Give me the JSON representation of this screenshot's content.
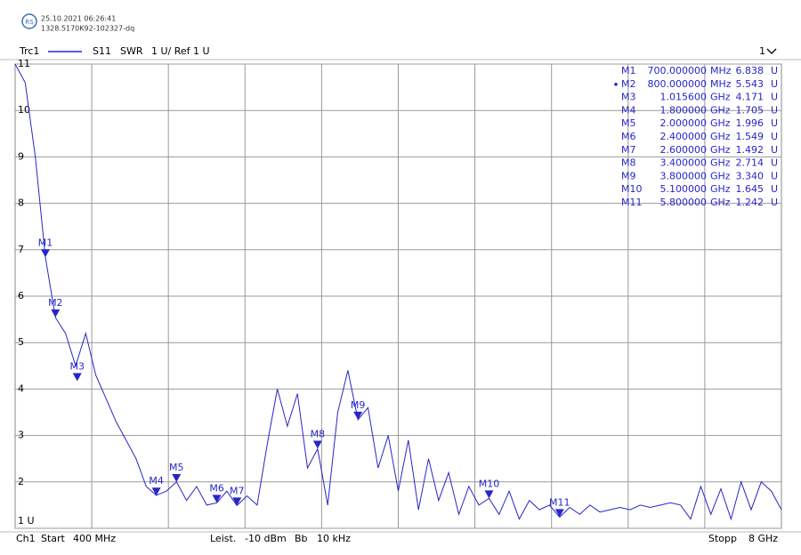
{
  "header": {
    "timestamp": "25.10.2021 06:26:41",
    "device_id": "1328.5170K92-102327-dq"
  },
  "trace_bar": {
    "trace": "Trc1",
    "parameter": "S11",
    "format": "SWR",
    "scale": "1 U/ Ref 1 U",
    "window": "1"
  },
  "footer": {
    "channel": "Ch1",
    "start": "Start",
    "start_value": "400 MHz",
    "power": "Leist.",
    "power_value": "-10 dBm",
    "bandwidth": "Bb",
    "bandwidth_value": "10 kHz",
    "stop": "Stopp",
    "stop_value": "8 GHz"
  },
  "chart_data": {
    "type": "line",
    "color": "#2626c8",
    "xlim": [
      400,
      8000
    ],
    "x_divisions": 10,
    "ylim": [
      1,
      11
    ],
    "yticks": [
      {
        "value": 1,
        "label": "1 U"
      },
      2,
      3,
      4,
      5,
      6,
      7,
      8,
      9,
      10,
      11
    ],
    "grid": true,
    "x": [
      400,
      500,
      600,
      700,
      800,
      900,
      1000,
      1100,
      1200,
      1300,
      1400,
      1500,
      1600,
      1700,
      1800,
      1900,
      2000,
      2100,
      2200,
      2300,
      2400,
      2500,
      2600,
      2700,
      2800,
      2900,
      3000,
      3100,
      3200,
      3300,
      3400,
      3500,
      3600,
      3700,
      3800,
      3900,
      4000,
      4100,
      4200,
      4300,
      4400,
      4500,
      4600,
      4700,
      4800,
      4900,
      5000,
      5100,
      5200,
      5300,
      5400,
      5500,
      5600,
      5700,
      5800,
      5900,
      6000,
      6100,
      6200,
      6300,
      6400,
      6500,
      6600,
      6700,
      6800,
      6900,
      7000,
      7100,
      7200,
      7300,
      7400,
      7500,
      7600,
      7700,
      7800,
      7900,
      8000
    ],
    "values": [
      11.0,
      10.6,
      9.0,
      6.84,
      5.54,
      5.2,
      4.5,
      5.2,
      4.3,
      3.8,
      3.3,
      2.9,
      2.5,
      1.9,
      1.71,
      1.8,
      2.0,
      1.6,
      1.9,
      1.5,
      1.55,
      1.8,
      1.49,
      1.7,
      1.5,
      2.8,
      4.0,
      3.2,
      3.9,
      2.3,
      2.71,
      1.5,
      3.5,
      4.4,
      3.34,
      3.6,
      2.3,
      3.0,
      1.8,
      2.9,
      1.4,
      2.5,
      1.6,
      2.2,
      1.3,
      1.9,
      1.5,
      1.645,
      1.3,
      1.8,
      1.2,
      1.6,
      1.4,
      1.5,
      1.242,
      1.45,
      1.3,
      1.5,
      1.35,
      1.4,
      1.45,
      1.4,
      1.5,
      1.45,
      1.5,
      1.55,
      1.5,
      1.2,
      1.9,
      1.3,
      1.85,
      1.2,
      2.0,
      1.4,
      2.0,
      1.8,
      1.4
    ],
    "markers": [
      {
        "name": "M1",
        "x": 700,
        "y": 6.838,
        "x_label": "700.000000",
        "x_unit": "MHz",
        "y_label": "6.838",
        "y_unit": "U"
      },
      {
        "name": "M2",
        "x": 800,
        "y": 5.543,
        "x_label": "800.000000",
        "x_unit": "MHz",
        "y_label": "5.543",
        "y_unit": "U",
        "active": true
      },
      {
        "name": "M3",
        "x": 1015.6,
        "y": 4.171,
        "x_label": "1.015600",
        "x_unit": "GHz",
        "y_label": "4.171",
        "y_unit": "U"
      },
      {
        "name": "M4",
        "x": 1800,
        "y": 1.705,
        "x_label": "1.800000",
        "x_unit": "GHz",
        "y_label": "1.705",
        "y_unit": "U"
      },
      {
        "name": "M5",
        "x": 2000,
        "y": 1.996,
        "x_label": "2.000000",
        "x_unit": "GHz",
        "y_label": "1.996",
        "y_unit": "U"
      },
      {
        "name": "M6",
        "x": 2400,
        "y": 1.549,
        "x_label": "2.400000",
        "x_unit": "GHz",
        "y_label": "1.549",
        "y_unit": "U"
      },
      {
        "name": "M7",
        "x": 2600,
        "y": 1.492,
        "x_label": "2.600000",
        "x_unit": "GHz",
        "y_label": "1.492",
        "y_unit": "U"
      },
      {
        "name": "M8",
        "x": 3400,
        "y": 2.714,
        "x_label": "3.400000",
        "x_unit": "GHz",
        "y_label": "2.714",
        "y_unit": "U"
      },
      {
        "name": "M9",
        "x": 3800,
        "y": 3.34,
        "x_label": "3.800000",
        "x_unit": "GHz",
        "y_label": "3.340",
        "y_unit": "U"
      },
      {
        "name": "M10",
        "x": 5100,
        "y": 1.645,
        "x_label": "5.100000",
        "x_unit": "GHz",
        "y_label": "1.645",
        "y_unit": "U"
      },
      {
        "name": "M11",
        "x": 5800,
        "y": 1.242,
        "x_label": "5.800000",
        "x_unit": "GHz",
        "y_label": "1.242",
        "y_unit": "U"
      }
    ]
  }
}
